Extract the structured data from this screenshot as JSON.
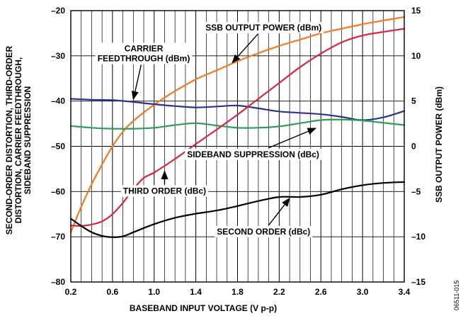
{
  "chart_data": {
    "type": "line",
    "figure_id": "06511-015",
    "xlabel": "BASEBAND INPUT VOLTAGE (V p-p)",
    "ylabel_left_lines": [
      "SECOND-ORDER DISTORTION, THIRD-ORDER",
      "DISTORTION, CARRIER FEEDTHROUGH,",
      "SIDEBAND SUPPRESSION"
    ],
    "ylabel_right": "SSB OUTPUT POWER (dBm)",
    "xlim": [
      0.2,
      3.4
    ],
    "ylim_left": [
      -80,
      -20
    ],
    "ylim_right": [
      -15,
      15
    ],
    "grid": true,
    "x_ticks": [
      0.2,
      0.6,
      1.0,
      1.4,
      1.8,
      2.2,
      2.6,
      3.0,
      3.4
    ],
    "x_tick_labels": [
      "0.2",
      "0.6",
      "1.0",
      "1.4",
      "1.8",
      "2.2",
      "2.6",
      "3.0",
      "3.4"
    ],
    "y_left_ticks": [
      -20,
      -30,
      -40,
      -50,
      -60,
      -70,
      -80
    ],
    "y_left_tick_labels": [
      "–20",
      "–30",
      "–40",
      "–50",
      "–60",
      "–70",
      "–80"
    ],
    "y_right_ticks": [
      15,
      10,
      5,
      0,
      -5,
      -10,
      -15
    ],
    "y_right_tick_labels": [
      "15",
      "10",
      "5",
      "0",
      "–5",
      "–10",
      "–15"
    ],
    "series": [
      {
        "name": "SSB OUTPUT POWER (dBm)",
        "axis": "right",
        "color": "#f47920",
        "x": [
          0.2,
          0.3,
          0.4,
          0.5,
          0.6,
          0.7,
          0.8,
          1.0,
          1.2,
          1.4,
          1.6,
          1.8,
          2.0,
          2.2,
          2.4,
          2.6,
          2.8,
          3.0,
          3.2,
          3.4
        ],
        "y": [
          -9.5,
          -6.7,
          -4.2,
          -2.0,
          0.0,
          1.6,
          2.8,
          4.6,
          6.1,
          7.4,
          8.4,
          9.4,
          10.3,
          11.1,
          11.8,
          12.5,
          13.0,
          13.5,
          13.9,
          14.3
        ]
      },
      {
        "name": "CARRIER FEEDTHROUGH (dBm)",
        "axis": "left",
        "color": "#2e3192",
        "x": [
          0.2,
          0.4,
          0.6,
          0.8,
          1.0,
          1.2,
          1.4,
          1.6,
          1.8,
          2.0,
          2.2,
          2.4,
          2.6,
          2.8,
          3.0,
          3.2,
          3.4
        ],
        "y": [
          -39.5,
          -39.7,
          -39.8,
          -40.2,
          -40.7,
          -41.1,
          -41.4,
          -41.2,
          -41.0,
          -41.6,
          -42.3,
          -42.6,
          -42.9,
          -43.5,
          -44.2,
          -43.6,
          -42.2
        ]
      },
      {
        "name": "SIDEBAND SUPPRESSION (dBc)",
        "axis": "left",
        "color": "#2ca05a",
        "x": [
          0.2,
          0.4,
          0.6,
          0.8,
          1.0,
          1.2,
          1.4,
          1.6,
          1.8,
          2.0,
          2.2,
          2.4,
          2.6,
          2.8,
          3.0,
          3.2,
          3.4
        ],
        "y": [
          -45.5,
          -45.9,
          -46.1,
          -46.1,
          -45.9,
          -45.3,
          -44.9,
          -45.4,
          -45.9,
          -45.9,
          -45.6,
          -44.9,
          -44.2,
          -44.1,
          -44.3,
          -44.8,
          -45.3
        ]
      },
      {
        "name": "THIRD ORDER (dBc)",
        "axis": "left",
        "color": "#d7263d",
        "x": [
          0.2,
          0.3,
          0.4,
          0.5,
          0.6,
          0.7,
          0.8,
          0.9,
          1.0,
          1.2,
          1.4,
          1.6,
          1.8,
          2.0,
          2.2,
          2.4,
          2.6,
          2.8,
          3.0,
          3.2,
          3.4
        ],
        "y": [
          -67.5,
          -67.6,
          -67.3,
          -66.6,
          -65.0,
          -62.5,
          -59.5,
          -57.0,
          -55.8,
          -52.8,
          -49.5,
          -46.3,
          -43.0,
          -39.5,
          -36.0,
          -32.5,
          -29.5,
          -27.0,
          -25.5,
          -24.7,
          -24.0
        ]
      },
      {
        "name": "SECOND ORDER (dBc)",
        "axis": "left",
        "color": "#000000",
        "x": [
          0.2,
          0.3,
          0.4,
          0.5,
          0.6,
          0.7,
          0.8,
          1.0,
          1.2,
          1.4,
          1.6,
          1.8,
          2.0,
          2.2,
          2.4,
          2.6,
          2.8,
          3.0,
          3.2,
          3.4
        ],
        "y": [
          -66.0,
          -67.6,
          -69.0,
          -69.8,
          -70.1,
          -69.9,
          -69.0,
          -67.2,
          -65.8,
          -64.9,
          -64.2,
          -63.2,
          -62.1,
          -61.2,
          -61.2,
          -60.7,
          -59.5,
          -58.6,
          -58.1,
          -57.9
        ]
      }
    ],
    "annotations": [
      {
        "lines": [
          "SSB OUTPUT POWER (dBm)"
        ],
        "anchor_x": 2.05,
        "anchor_y": -24.4,
        "arrow_to_x": 1.75,
        "arrow_to_y": -31.5
      },
      {
        "lines": [
          "CARRIER",
          "FEEDTHROUGH (dBm)"
        ],
        "anchor_x": 0.9,
        "anchor_y": -29.0,
        "arrow_to_x": 0.8,
        "arrow_to_y": -39.6
      },
      {
        "lines": [
          "SIDEBAND SUPPRESSION (dBc)"
        ],
        "anchor_x": 1.95,
        "anchor_y": -52.4,
        "arrow_to_x": 2.55,
        "arrow_to_y": -46.0
      },
      {
        "lines": [
          "THIRD ORDER (dBc)"
        ],
        "anchor_x": 1.1,
        "anchor_y": -60.5,
        "arrow_to_x": 1.1,
        "arrow_to_y": -55.5
      },
      {
        "lines": [
          "SECOND ORDER (dBc)"
        ],
        "anchor_x": 2.05,
        "anchor_y": -69.5,
        "arrow_to_x": 2.3,
        "arrow_to_y": -61.5
      }
    ]
  }
}
